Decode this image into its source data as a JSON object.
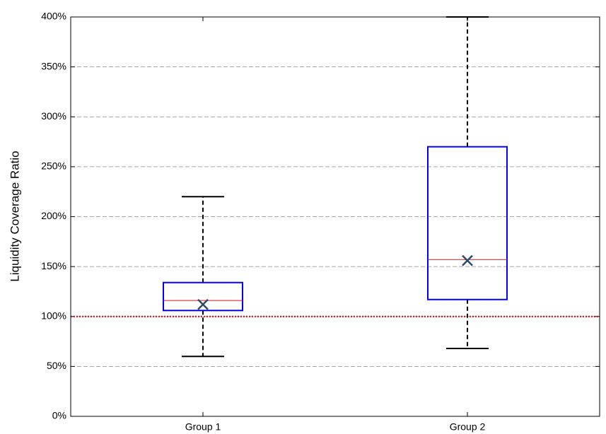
{
  "chart_data": {
    "type": "box",
    "y_label": "Liquidity Coverage Ratio",
    "categories": [
      "Group 1",
      "Group 2"
    ],
    "whisker_low": [
      60,
      68
    ],
    "q1": [
      106,
      117
    ],
    "median": [
      116,
      157
    ],
    "q3": [
      134,
      270
    ],
    "whisker_high": [
      220,
      400
    ],
    "mean": [
      112,
      156
    ],
    "reference": 100,
    "ylim": [
      0,
      400
    ],
    "yticks": [
      {
        "value": 0,
        "label": "0%"
      },
      {
        "value": 50,
        "label": "50%"
      },
      {
        "value": 100,
        "label": "100%"
      },
      {
        "value": 150,
        "label": "150%"
      },
      {
        "value": 200,
        "label": "200%"
      },
      {
        "value": 250,
        "label": "250%"
      },
      {
        "value": 300,
        "label": "300%"
      },
      {
        "value": 350,
        "label": "350%"
      },
      {
        "value": 400,
        "label": "400%"
      }
    ],
    "grid": true,
    "box_color": "#0000ff",
    "median_color": "#ff0000",
    "whisker_color": "#000000",
    "mean_color": "#2e4a66",
    "reference_color": "#e00000"
  }
}
